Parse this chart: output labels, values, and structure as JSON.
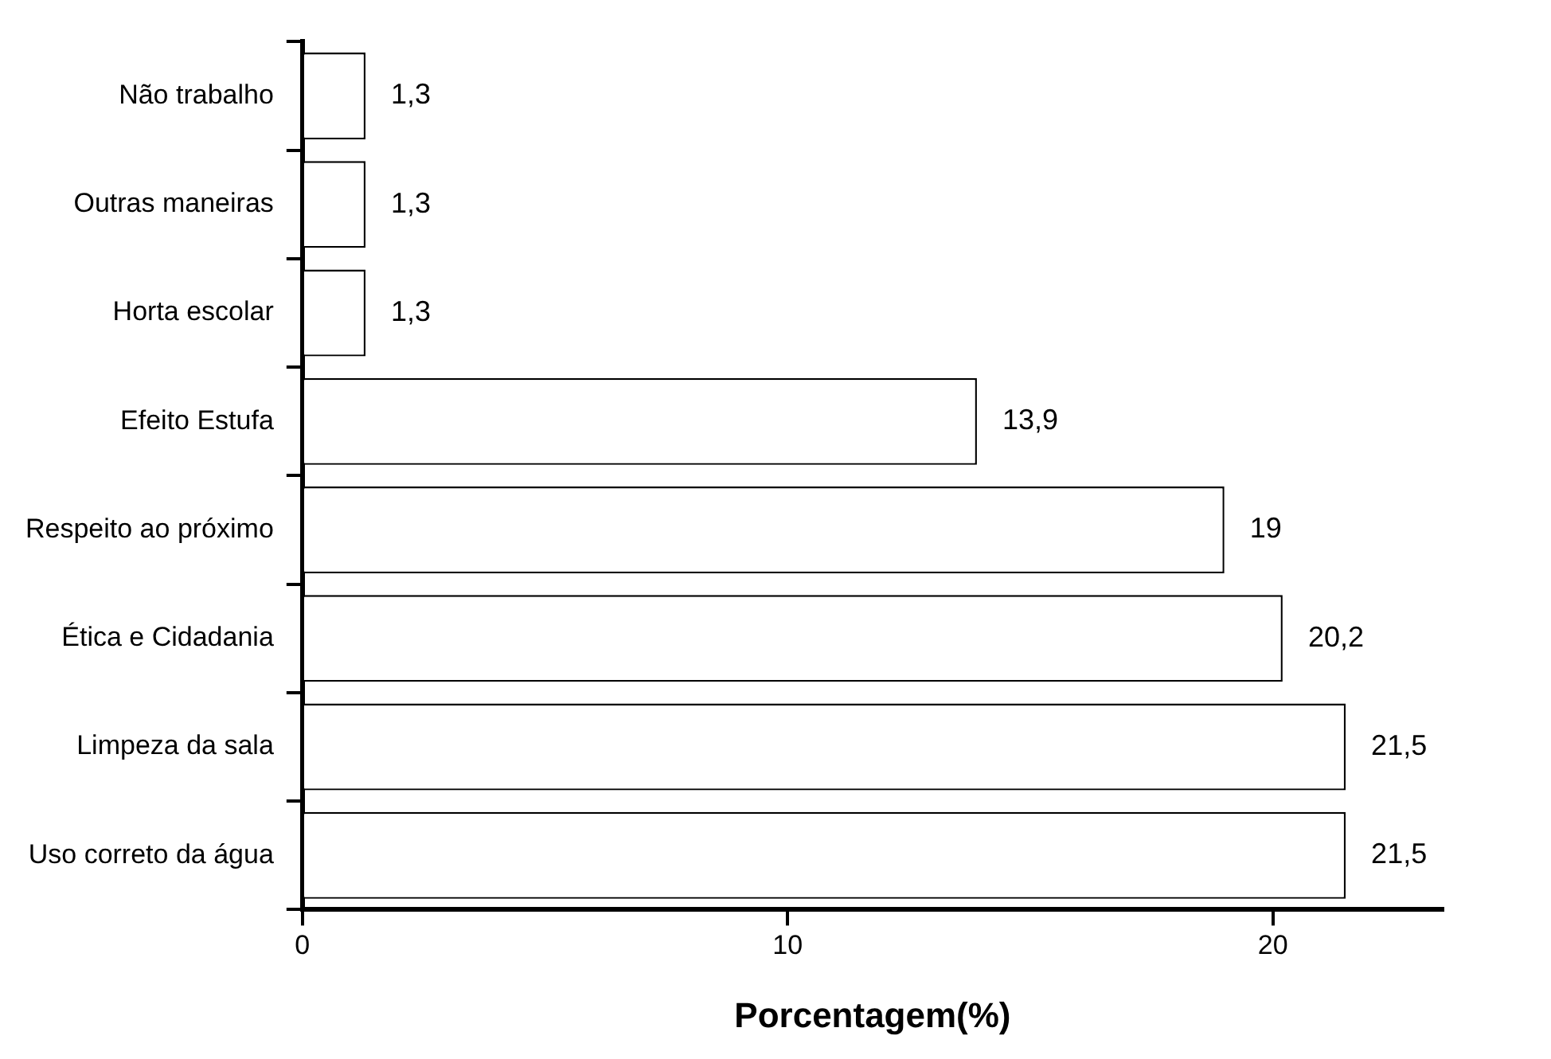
{
  "chart_data": {
    "type": "bar",
    "orientation": "horizontal",
    "xlabel": "Porcentagem(%)",
    "categories": [
      "Não trabalho",
      "Outras maneiras",
      "Horta escolar",
      "Efeito Estufa",
      "Respeito ao próximo",
      "Ética e Cidadania",
      "Limpeza da sala",
      "Uso correto da água"
    ],
    "values": [
      1.3,
      1.3,
      1.3,
      13.9,
      19,
      20.2,
      21.5,
      21.5
    ],
    "value_labels": [
      "1,3",
      "1,3",
      "1,3",
      "13,9",
      "19",
      "20,2",
      "21,5",
      "21,5"
    ],
    "color": "#ffffff",
    "xlim": [
      0,
      23.5
    ],
    "xticks": [
      0,
      10,
      20
    ]
  }
}
